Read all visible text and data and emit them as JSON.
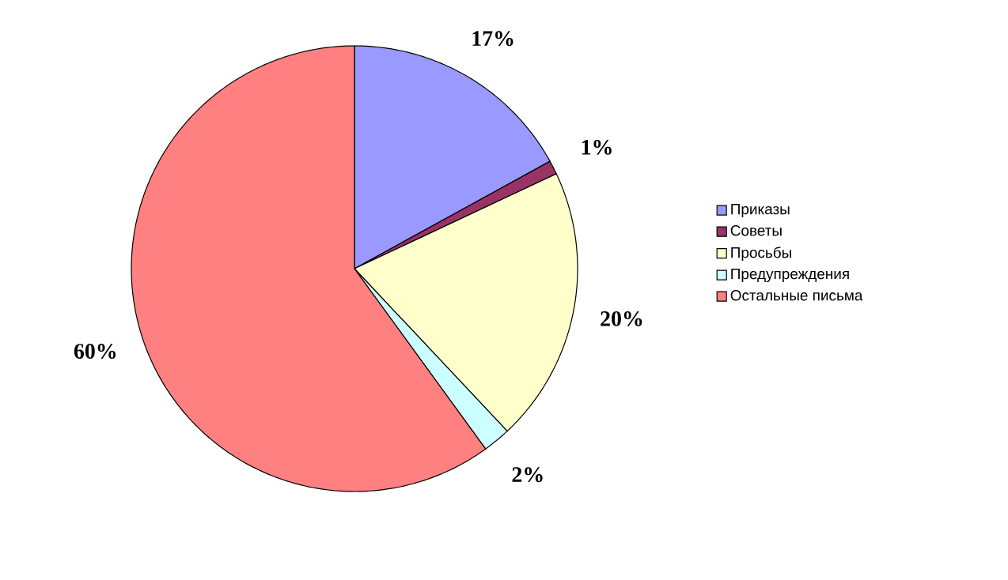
{
  "chart_data": {
    "type": "pie",
    "categories": [
      "Приказы",
      "Советы",
      "Просьбы",
      "Предупреждения",
      "Остальные письма"
    ],
    "values": [
      17,
      1,
      20,
      2,
      60
    ],
    "value_labels": [
      "17%",
      "1%",
      "20%",
      "2%",
      "60%"
    ],
    "colors": [
      "#9999ff",
      "#993366",
      "#ffffcc",
      "#ccffff",
      "#ff8080"
    ],
    "legend": "right"
  }
}
